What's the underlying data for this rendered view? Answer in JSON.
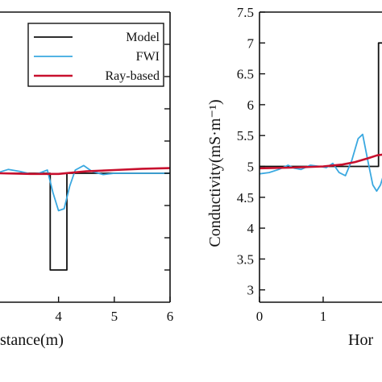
{
  "chart_data": [
    {
      "type": "line",
      "xlabel": "stance(m)",
      "xlim": [
        3.0,
        6.0
      ],
      "ylim": [
        3.0,
        7.5
      ],
      "x_ticks": [
        4,
        5,
        6
      ],
      "x_tick_labels": [
        "4",
        "5",
        "6"
      ],
      "y_ticks": [
        3.5,
        4.0,
        4.5,
        5.0,
        5.5,
        6.0,
        6.5,
        7.0
      ],
      "legend_position": "top-right",
      "series": [
        {
          "name": "Model",
          "color": "#111111",
          "x": [
            2.95,
            3.85,
            3.85,
            4.15,
            4.15,
            6.0
          ],
          "y": [
            5.0,
            5.0,
            3.5,
            3.5,
            5.0,
            5.0
          ]
        },
        {
          "name": "FWI",
          "color": "#3aa8e0",
          "x": [
            2.95,
            3.1,
            3.3,
            3.5,
            3.65,
            3.8,
            3.9,
            4.0,
            4.1,
            4.2,
            4.3,
            4.45,
            4.6,
            4.8,
            5.0,
            5.3,
            5.6,
            6.0
          ],
          "y": [
            5.02,
            5.06,
            5.03,
            4.99,
            5.0,
            5.05,
            4.7,
            4.42,
            4.45,
            4.8,
            5.05,
            5.12,
            5.03,
            4.98,
            5.0,
            5.0,
            5.0,
            5.0
          ]
        },
        {
          "name": "Ray-based",
          "color": "#c8102e",
          "x": [
            2.95,
            3.5,
            4.0,
            4.5,
            5.0,
            5.5,
            6.0
          ],
          "y": [
            5.0,
            4.99,
            4.99,
            5.03,
            5.05,
            5.07,
            5.08
          ]
        }
      ]
    },
    {
      "type": "line",
      "xlabel": "Hor",
      "ylabel": "Conductivity(mS·m⁻¹)",
      "xlim": [
        0,
        2.0
      ],
      "ylim": [
        2.8,
        7.5
      ],
      "x_ticks": [
        0,
        1
      ],
      "x_tick_labels": [
        "0",
        "1"
      ],
      "y_ticks": [
        3.0,
        3.5,
        4.0,
        4.5,
        5.0,
        5.5,
        6.0,
        6.5,
        7.0,
        7.5
      ],
      "y_tick_labels": [
        "3",
        "3.5",
        "4",
        "4.5",
        "5",
        "5.5",
        "6",
        "6.5",
        "7",
        "7.5"
      ],
      "series": [
        {
          "color": "#111111",
          "x": [
            0,
            1.87,
            1.87,
            2.0
          ],
          "y": [
            5.0,
            5.0,
            7.0,
            7.0
          ]
        },
        {
          "color": "#3aa8e0",
          "x": [
            0,
            0.15,
            0.3,
            0.45,
            0.55,
            0.65,
            0.8,
            0.95,
            1.05,
            1.15,
            1.25,
            1.35,
            1.45,
            1.55,
            1.62,
            1.7,
            1.78,
            1.84,
            1.9,
            1.96,
            2.0
          ],
          "y": [
            4.88,
            4.9,
            4.95,
            5.02,
            4.97,
            4.95,
            5.02,
            5.0,
            4.98,
            5.05,
            4.9,
            4.85,
            5.1,
            5.45,
            5.52,
            5.1,
            4.7,
            4.6,
            4.7,
            4.9,
            5.0
          ]
        },
        {
          "color": "#c8102e",
          "x": [
            0,
            0.5,
            1.0,
            1.3,
            1.5,
            1.7,
            1.85,
            2.0
          ],
          "y": [
            4.97,
            4.98,
            5.0,
            5.03,
            5.07,
            5.13,
            5.18,
            5.2
          ]
        }
      ]
    }
  ]
}
